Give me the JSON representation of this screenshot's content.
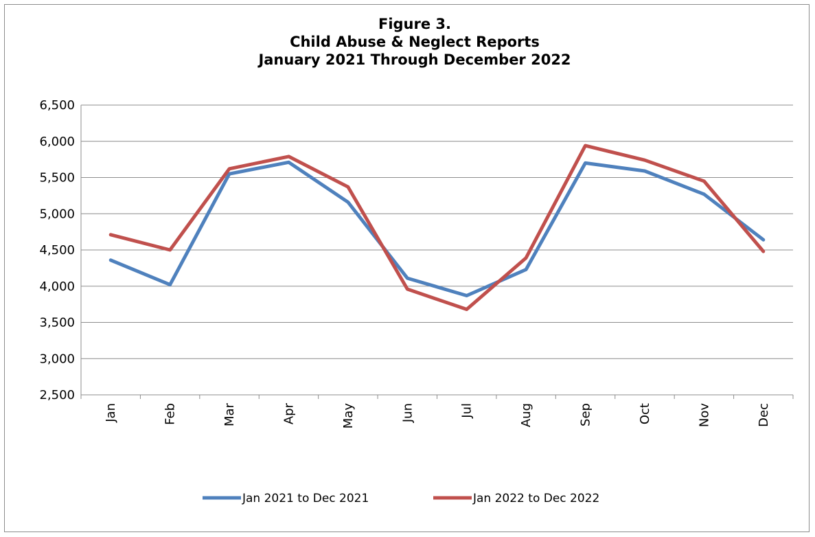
{
  "chart_data": {
    "type": "line",
    "title": [
      "Figure 3.",
      "Child Abuse & Neglect Reports",
      "January 2021 Through December 2022"
    ],
    "categories": [
      "Jan",
      "Feb",
      "Mar",
      "Apr",
      "May",
      "Jun",
      "Jul",
      "Aug",
      "Sep",
      "Oct",
      "Nov",
      "Dec"
    ],
    "ylim": [
      2500,
      6500
    ],
    "yticks": [
      2500,
      3000,
      3500,
      4000,
      4500,
      5000,
      5500,
      6000,
      6500
    ],
    "ytick_labels": [
      "2,500",
      "3,000",
      "3,500",
      "4,000",
      "4,500",
      "5,000",
      "5,500",
      "6,000",
      "6,500"
    ],
    "grid": true,
    "legend_position": "bottom",
    "series": [
      {
        "name": "Jan 2021 to Dec 2021",
        "color": "#4f81bd",
        "values": [
          4360,
          4020,
          5550,
          5710,
          5160,
          4110,
          3870,
          4230,
          5700,
          5590,
          5270,
          4640
        ]
      },
      {
        "name": "Jan 2022 to Dec 2022",
        "color": "#c0504d",
        "values": [
          4710,
          4500,
          5620,
          5790,
          5370,
          3960,
          3680,
          4390,
          5940,
          5740,
          5450,
          4480
        ]
      }
    ]
  }
}
